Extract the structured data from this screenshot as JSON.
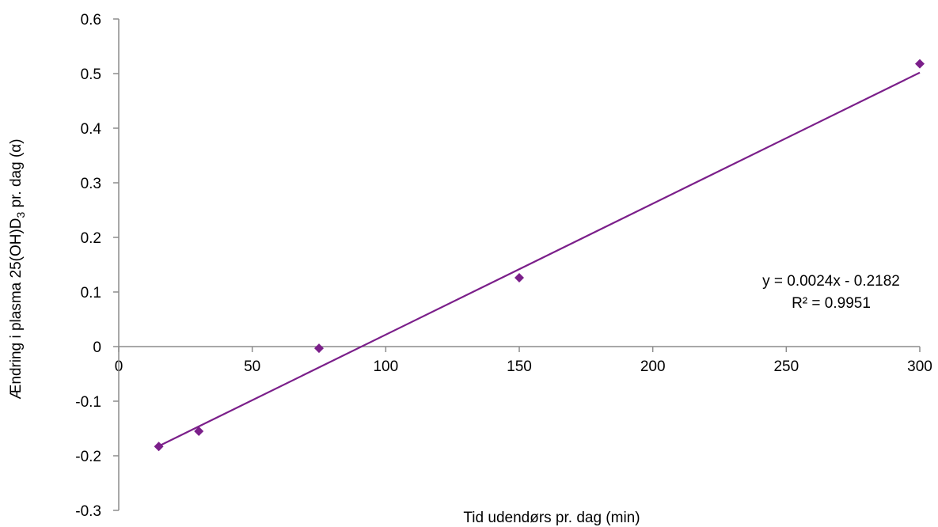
{
  "chart_data": {
    "type": "scatter",
    "title": "",
    "xlabel": "Tid udendørs pr. dag (min)",
    "ylabel": {
      "main": "Ændring i plasma 25(OH)D",
      "subscript": "3",
      "suffix": " pr. dag (α)"
    },
    "xlim": [
      0,
      300
    ],
    "ylim": [
      -0.3,
      0.6
    ],
    "xticks": [
      0,
      50,
      100,
      150,
      200,
      250,
      300
    ],
    "xtick_labels": [
      "0",
      "50",
      "100",
      "150",
      "200",
      "250",
      "300"
    ],
    "yticks": [
      -0.3,
      -0.2,
      -0.1,
      0,
      0.1,
      0.2,
      0.3,
      0.4,
      0.5,
      0.6
    ],
    "ytick_labels": [
      "-0.3",
      "-0.2",
      "-0.1",
      "0",
      "0.1",
      "0.2",
      "0.3",
      "0.4",
      "0.5",
      "0.6"
    ],
    "grid": false,
    "legend": "none",
    "series": [
      {
        "color": "#7B1F8A",
        "marker": "diamond",
        "points": [
          {
            "x": 15,
            "y": -0.183
          },
          {
            "x": 30,
            "y": -0.155
          },
          {
            "x": 75,
            "y": -0.003
          },
          {
            "x": 150,
            "y": 0.126
          },
          {
            "x": 300,
            "y": 0.518
          }
        ],
        "trendline": {
          "type": "linear",
          "slope": 0.0024,
          "intercept": -0.2182,
          "x_range": [
            15,
            300
          ],
          "color": "#7B1F8A"
        }
      }
    ],
    "annotations": {
      "equation": "y = 0.0024x - 0.2182",
      "r_squared": "R² = 0.9951"
    }
  }
}
